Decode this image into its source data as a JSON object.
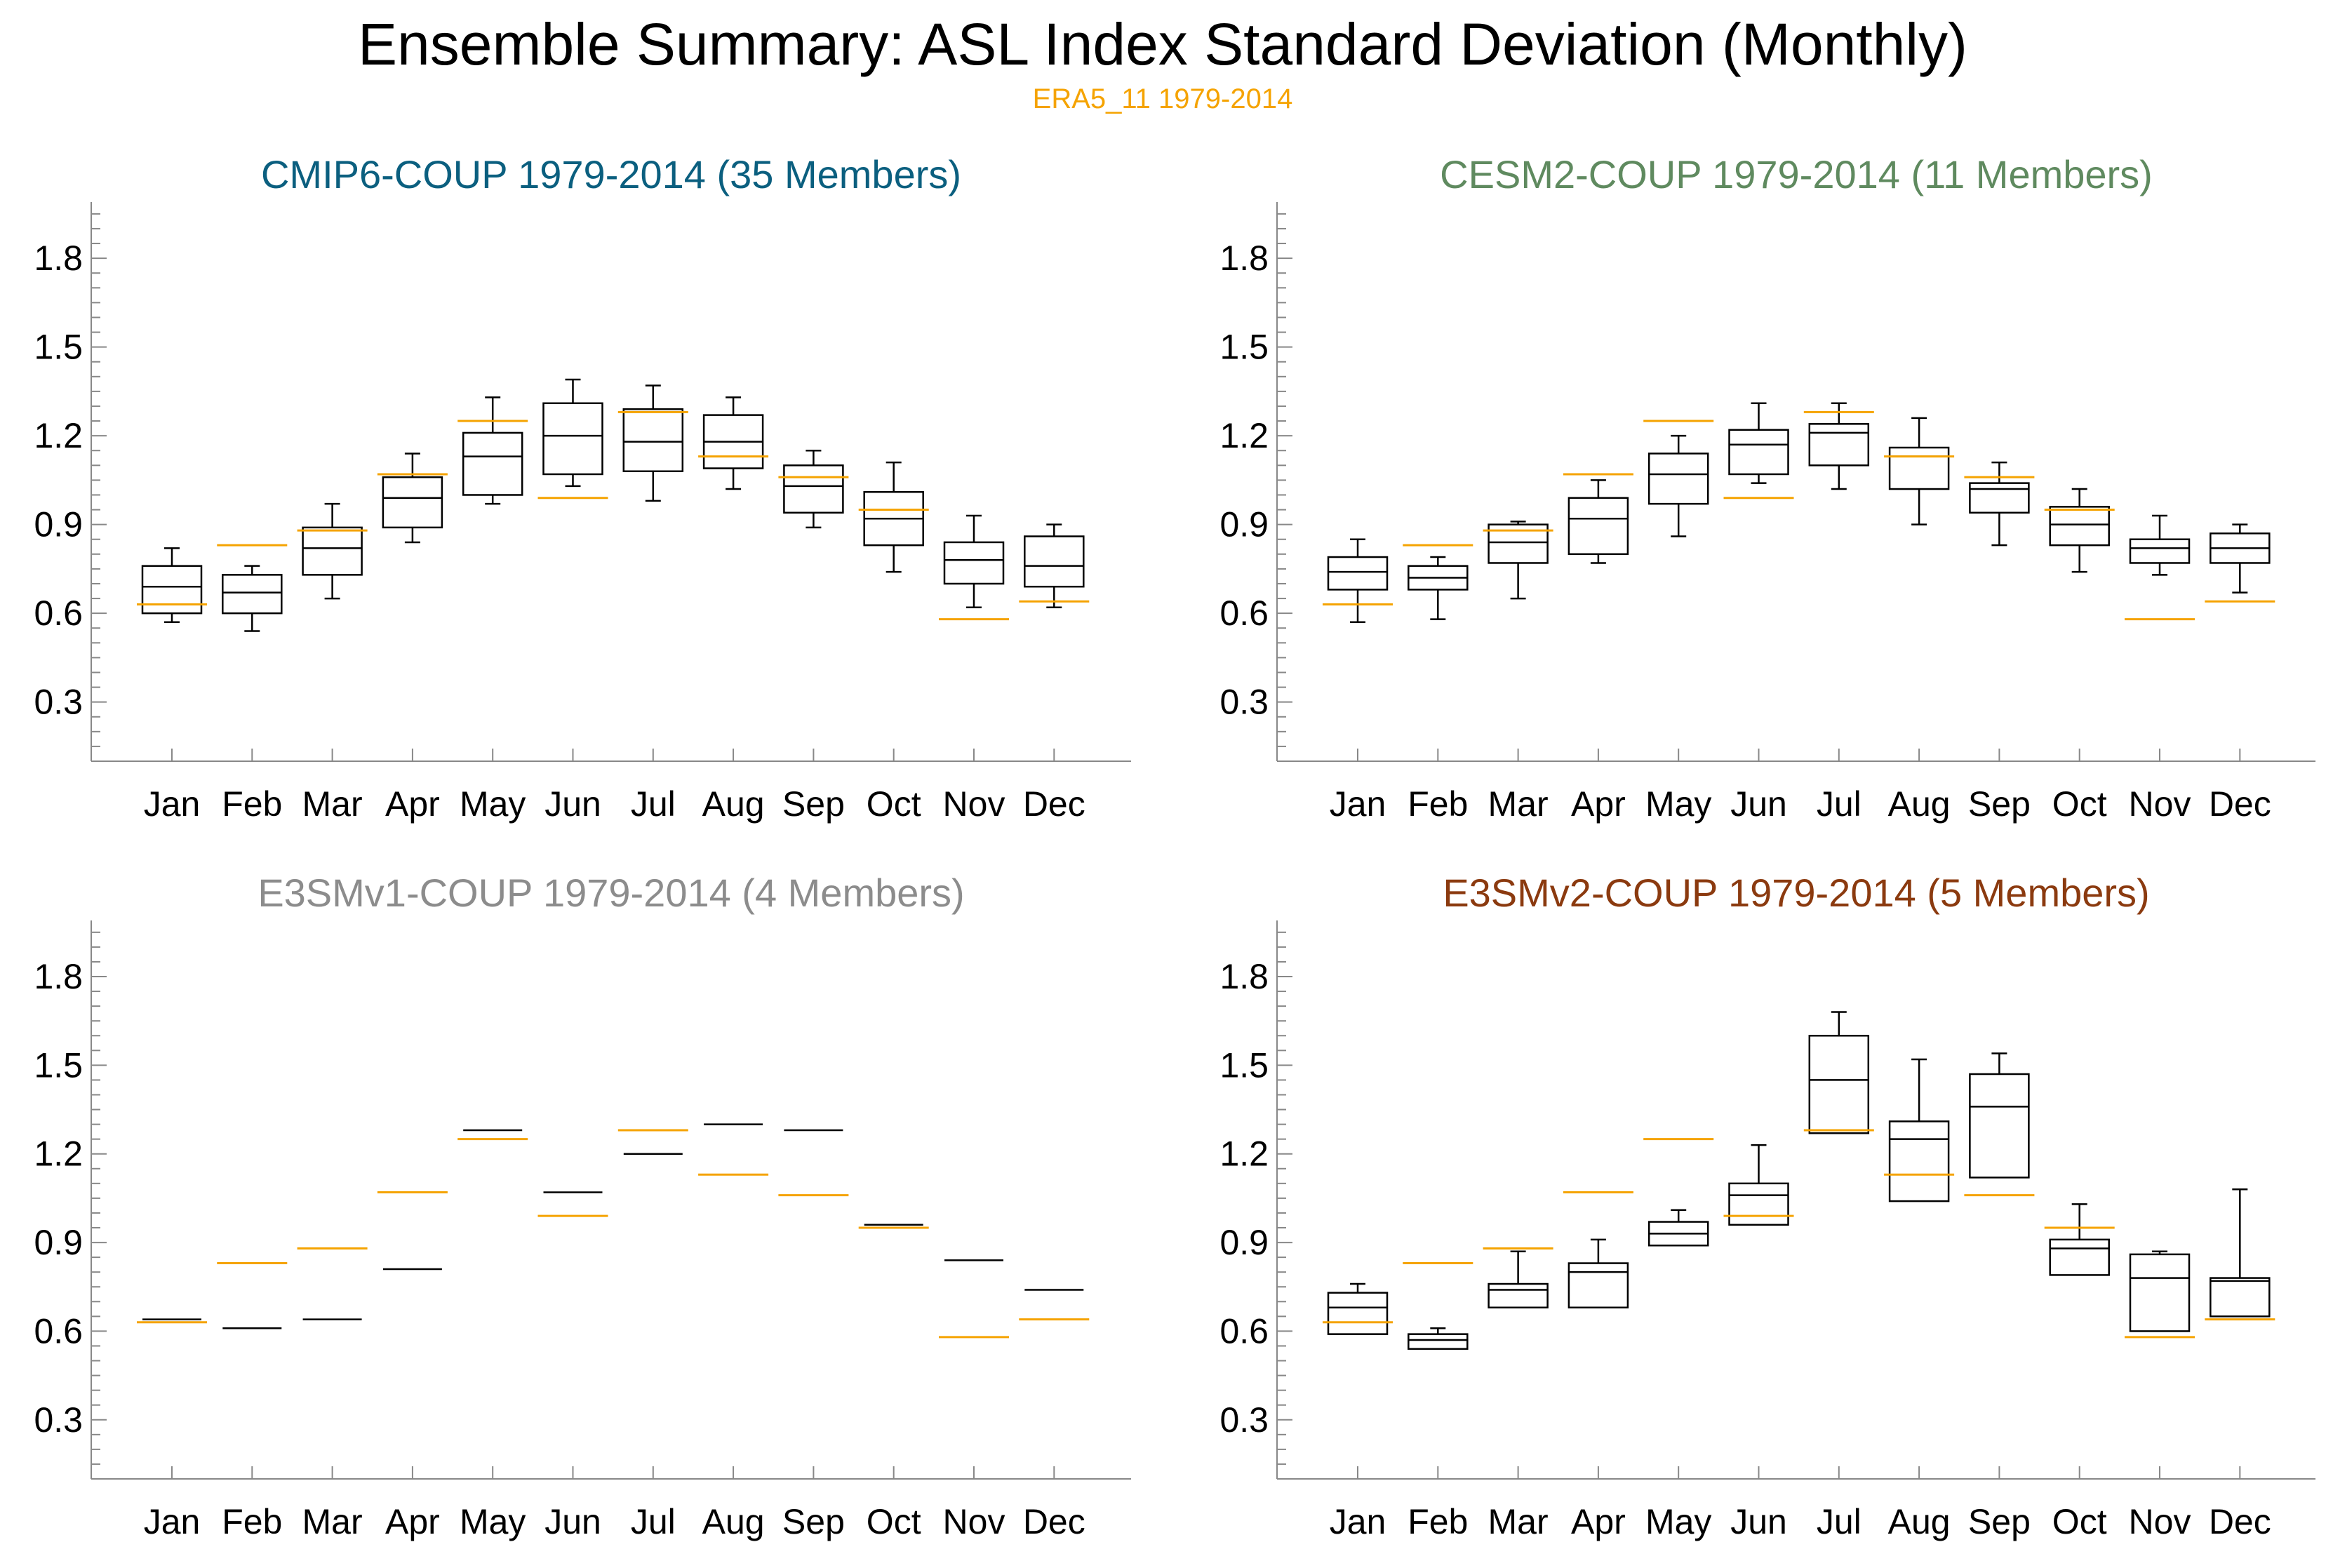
{
  "figure": {
    "title": "Ensemble Summary: ASL Index Standard Deviation (Monthly)",
    "subtitle": "ERA5_11 1979-2014",
    "reference_color": "#f5a300",
    "box_color": "#000000"
  },
  "chart_data": [
    {
      "type": "box",
      "title": "CMIP6-COUP 1979-2014 (35 Members)",
      "title_color": "#0b5f7f",
      "categories": [
        "Jan",
        "Feb",
        "Mar",
        "Apr",
        "May",
        "Jun",
        "Jul",
        "Aug",
        "Sep",
        "Oct",
        "Nov",
        "Dec"
      ],
      "ylim": [
        0.1,
        1.99
      ],
      "yticks": [
        0.3,
        0.6,
        0.9,
        1.2,
        1.5,
        1.8
      ],
      "ytick_labels": [
        "0.3",
        "0.6",
        "0.9",
        "1.2",
        "1.5",
        "1.8"
      ],
      "boxes": [
        {
          "whisker_low": 0.57,
          "q1": 0.6,
          "median": 0.69,
          "q3": 0.76,
          "whisker_high": 0.82
        },
        {
          "whisker_low": 0.54,
          "q1": 0.6,
          "median": 0.67,
          "q3": 0.73,
          "whisker_high": 0.76
        },
        {
          "whisker_low": 0.65,
          "q1": 0.73,
          "median": 0.82,
          "q3": 0.89,
          "whisker_high": 0.97
        },
        {
          "whisker_low": 0.84,
          "q1": 0.89,
          "median": 0.99,
          "q3": 1.06,
          "whisker_high": 1.14
        },
        {
          "whisker_low": 0.97,
          "q1": 1.0,
          "median": 1.13,
          "q3": 1.21,
          "whisker_high": 1.33
        },
        {
          "whisker_low": 1.03,
          "q1": 1.07,
          "median": 1.2,
          "q3": 1.31,
          "whisker_high": 1.39
        },
        {
          "whisker_low": 0.98,
          "q1": 1.08,
          "median": 1.18,
          "q3": 1.29,
          "whisker_high": 1.37
        },
        {
          "whisker_low": 1.02,
          "q1": 1.09,
          "median": 1.18,
          "q3": 1.27,
          "whisker_high": 1.33
        },
        {
          "whisker_low": 0.89,
          "q1": 0.94,
          "median": 1.03,
          "q3": 1.1,
          "whisker_high": 1.15
        },
        {
          "whisker_low": 0.74,
          "q1": 0.83,
          "median": 0.92,
          "q3": 1.01,
          "whisker_high": 1.11
        },
        {
          "whisker_low": 0.62,
          "q1": 0.7,
          "median": 0.78,
          "q3": 0.84,
          "whisker_high": 0.93
        },
        {
          "whisker_low": 0.62,
          "q1": 0.69,
          "median": 0.76,
          "q3": 0.86,
          "whisker_high": 0.9
        }
      ],
      "reference": [
        0.63,
        0.83,
        0.88,
        1.07,
        1.25,
        0.99,
        1.28,
        1.13,
        1.06,
        0.95,
        0.58,
        0.64
      ]
    },
    {
      "type": "box",
      "title": "CESM2-COUP 1979-2014 (11 Members)",
      "title_color": "#5f8a5f",
      "categories": [
        "Jan",
        "Feb",
        "Mar",
        "Apr",
        "May",
        "Jun",
        "Jul",
        "Aug",
        "Sep",
        "Oct",
        "Nov",
        "Dec"
      ],
      "ylim": [
        0.1,
        1.99
      ],
      "yticks": [
        0.3,
        0.6,
        0.9,
        1.2,
        1.5,
        1.8
      ],
      "ytick_labels": [
        "0.3",
        "0.6",
        "0.9",
        "1.2",
        "1.5",
        "1.8"
      ],
      "boxes": [
        {
          "whisker_low": 0.57,
          "q1": 0.68,
          "median": 0.74,
          "q3": 0.79,
          "whisker_high": 0.85
        },
        {
          "whisker_low": 0.58,
          "q1": 0.68,
          "median": 0.72,
          "q3": 0.76,
          "whisker_high": 0.79
        },
        {
          "whisker_low": 0.65,
          "q1": 0.77,
          "median": 0.84,
          "q3": 0.9,
          "whisker_high": 0.91
        },
        {
          "whisker_low": 0.77,
          "q1": 0.8,
          "median": 0.92,
          "q3": 0.99,
          "whisker_high": 1.05
        },
        {
          "whisker_low": 0.86,
          "q1": 0.97,
          "median": 1.07,
          "q3": 1.14,
          "whisker_high": 1.2
        },
        {
          "whisker_low": 1.04,
          "q1": 1.07,
          "median": 1.17,
          "q3": 1.22,
          "whisker_high": 1.31
        },
        {
          "whisker_low": 1.02,
          "q1": 1.1,
          "median": 1.21,
          "q3": 1.24,
          "whisker_high": 1.31
        },
        {
          "whisker_low": 0.9,
          "q1": 1.02,
          "median": 1.13,
          "q3": 1.16,
          "whisker_high": 1.26
        },
        {
          "whisker_low": 0.83,
          "q1": 0.94,
          "median": 1.02,
          "q3": 1.04,
          "whisker_high": 1.11
        },
        {
          "whisker_low": 0.74,
          "q1": 0.83,
          "median": 0.9,
          "q3": 0.96,
          "whisker_high": 1.02
        },
        {
          "whisker_low": 0.73,
          "q1": 0.77,
          "median": 0.82,
          "q3": 0.85,
          "whisker_high": 0.93
        },
        {
          "whisker_low": 0.67,
          "q1": 0.77,
          "median": 0.82,
          "q3": 0.87,
          "whisker_high": 0.9
        }
      ],
      "reference": [
        0.63,
        0.83,
        0.88,
        1.07,
        1.25,
        0.99,
        1.28,
        1.13,
        1.06,
        0.95,
        0.58,
        0.64
      ]
    },
    {
      "type": "box",
      "title": "E3SMv1-COUP 1979-2014 (4 Members)",
      "title_color": "#8c8c8c",
      "categories": [
        "Jan",
        "Feb",
        "Mar",
        "Apr",
        "May",
        "Jun",
        "Jul",
        "Aug",
        "Sep",
        "Oct",
        "Nov",
        "Dec"
      ],
      "ylim": [
        0.1,
        1.99
      ],
      "yticks": [
        0.3,
        0.6,
        0.9,
        1.2,
        1.5,
        1.8
      ],
      "ytick_labels": [
        "0.3",
        "0.6",
        "0.9",
        "1.2",
        "1.5",
        "1.8"
      ],
      "boxes": [
        {
          "whisker_low": 0.64,
          "q1": 0.64,
          "median": 0.64,
          "q3": 0.64,
          "whisker_high": 0.64
        },
        {
          "whisker_low": 0.61,
          "q1": 0.61,
          "median": 0.61,
          "q3": 0.61,
          "whisker_high": 0.61
        },
        {
          "whisker_low": 0.64,
          "q1": 0.64,
          "median": 0.64,
          "q3": 0.64,
          "whisker_high": 0.64
        },
        {
          "whisker_low": 0.81,
          "q1": 0.81,
          "median": 0.81,
          "q3": 0.81,
          "whisker_high": 0.81
        },
        {
          "whisker_low": 1.28,
          "q1": 1.28,
          "median": 1.28,
          "q3": 1.28,
          "whisker_high": 1.28
        },
        {
          "whisker_low": 1.07,
          "q1": 1.07,
          "median": 1.07,
          "q3": 1.07,
          "whisker_high": 1.07
        },
        {
          "whisker_low": 1.2,
          "q1": 1.2,
          "median": 1.2,
          "q3": 1.2,
          "whisker_high": 1.2
        },
        {
          "whisker_low": 1.3,
          "q1": 1.3,
          "median": 1.3,
          "q3": 1.3,
          "whisker_high": 1.3
        },
        {
          "whisker_low": 1.28,
          "q1": 1.28,
          "median": 1.28,
          "q3": 1.28,
          "whisker_high": 1.28
        },
        {
          "whisker_low": 0.96,
          "q1": 0.96,
          "median": 0.96,
          "q3": 0.96,
          "whisker_high": 0.96
        },
        {
          "whisker_low": 0.84,
          "q1": 0.84,
          "median": 0.84,
          "q3": 0.84,
          "whisker_high": 0.84
        },
        {
          "whisker_low": 0.74,
          "q1": 0.74,
          "median": 0.74,
          "q3": 0.74,
          "whisker_high": 0.74
        }
      ],
      "reference": [
        0.63,
        0.83,
        0.88,
        1.07,
        1.25,
        0.99,
        1.28,
        1.13,
        1.06,
        0.95,
        0.58,
        0.64
      ]
    },
    {
      "type": "box",
      "title": "E3SMv2-COUP 1979-2014 (5 Members)",
      "title_color": "#8b3a0f",
      "categories": [
        "Jan",
        "Feb",
        "Mar",
        "Apr",
        "May",
        "Jun",
        "Jul",
        "Aug",
        "Sep",
        "Oct",
        "Nov",
        "Dec"
      ],
      "ylim": [
        0.1,
        1.99
      ],
      "yticks": [
        0.3,
        0.6,
        0.9,
        1.2,
        1.5,
        1.8
      ],
      "ytick_labels": [
        "0.3",
        "0.6",
        "0.9",
        "1.2",
        "1.5",
        "1.8"
      ],
      "boxes": [
        {
          "whisker_low": 0.59,
          "q1": 0.59,
          "median": 0.68,
          "q3": 0.73,
          "whisker_high": 0.76
        },
        {
          "whisker_low": 0.54,
          "q1": 0.54,
          "median": 0.57,
          "q3": 0.59,
          "whisker_high": 0.61
        },
        {
          "whisker_low": 0.68,
          "q1": 0.68,
          "median": 0.74,
          "q3": 0.76,
          "whisker_high": 0.87
        },
        {
          "whisker_low": 0.68,
          "q1": 0.68,
          "median": 0.8,
          "q3": 0.83,
          "whisker_high": 0.91
        },
        {
          "whisker_low": 0.89,
          "q1": 0.89,
          "median": 0.93,
          "q3": 0.97,
          "whisker_high": 1.01
        },
        {
          "whisker_low": 0.96,
          "q1": 0.96,
          "median": 1.06,
          "q3": 1.1,
          "whisker_high": 1.23
        },
        {
          "whisker_low": 1.27,
          "q1": 1.27,
          "median": 1.45,
          "q3": 1.6,
          "whisker_high": 1.68
        },
        {
          "whisker_low": 1.04,
          "q1": 1.04,
          "median": 1.25,
          "q3": 1.31,
          "whisker_high": 1.52
        },
        {
          "whisker_low": 1.12,
          "q1": 1.12,
          "median": 1.36,
          "q3": 1.47,
          "whisker_high": 1.54
        },
        {
          "whisker_low": 0.79,
          "q1": 0.79,
          "median": 0.88,
          "q3": 0.91,
          "whisker_high": 1.03
        },
        {
          "whisker_low": 0.6,
          "q1": 0.6,
          "median": 0.78,
          "q3": 0.86,
          "whisker_high": 0.87
        },
        {
          "whisker_low": 0.65,
          "q1": 0.65,
          "median": 0.77,
          "q3": 0.78,
          "whisker_high": 1.08
        }
      ],
      "reference": [
        0.63,
        0.83,
        0.88,
        1.07,
        1.25,
        0.99,
        1.28,
        1.13,
        1.06,
        0.95,
        0.58,
        0.64
      ]
    }
  ]
}
